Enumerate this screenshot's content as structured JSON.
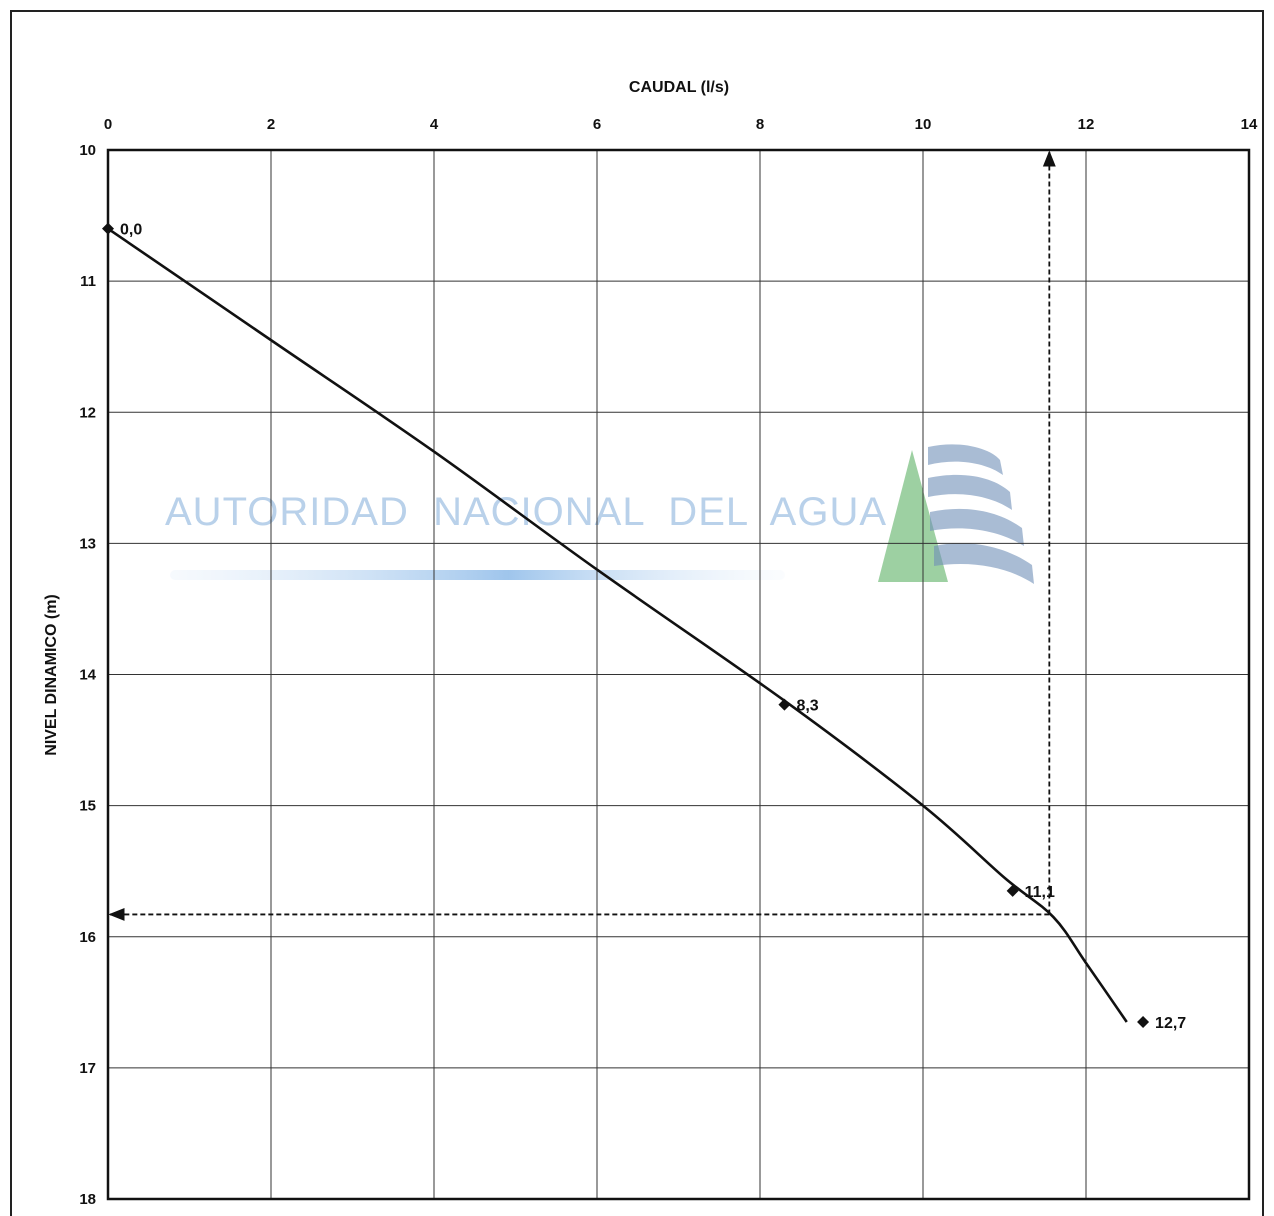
{
  "chart_data": {
    "type": "line",
    "title": "",
    "xlabel": "CAUDAL (l/s)",
    "ylabel": "NIVEL DINAMICO (m)",
    "xlim": [
      0,
      14
    ],
    "ylim": [
      10,
      18
    ],
    "y_inverted": true,
    "x_axis_position": "top",
    "grid": true,
    "x_ticks": [
      "0",
      "2",
      "4",
      "6",
      "8",
      "10",
      "12",
      "14"
    ],
    "y_ticks": [
      "10",
      "11",
      "12",
      "13",
      "14",
      "15",
      "16",
      "17",
      "18"
    ],
    "points": [
      {
        "x": 0,
        "y": 10.6,
        "label": "0,0"
      },
      {
        "x": 8.3,
        "y": 14.23,
        "label": "8,3"
      },
      {
        "x": 11.1,
        "y": 15.65,
        "label": "11,1"
      },
      {
        "x": 12.7,
        "y": 16.65,
        "label": "12,7"
      }
    ],
    "curve": {
      "x": [
        0,
        2,
        4,
        6,
        8.3,
        10,
        11,
        11.6,
        12.0,
        12.5
      ],
      "y": [
        10.6,
        11.45,
        12.3,
        13.2,
        14.2,
        15.0,
        15.55,
        15.85,
        16.2,
        16.65
      ]
    },
    "guide": {
      "style": "dashed-arrow",
      "color": "#111111",
      "x": 11.55,
      "y": 15.83
    },
    "colors": {
      "line": "#111111",
      "grid": "#333333",
      "watermark_text": "#b9d1ea",
      "watermark_green": "#4caa56",
      "watermark_blue": "#6f8fb8"
    }
  },
  "watermark": {
    "text": "AUTORIDAD  NACIONAL  DEL  AGUA"
  }
}
